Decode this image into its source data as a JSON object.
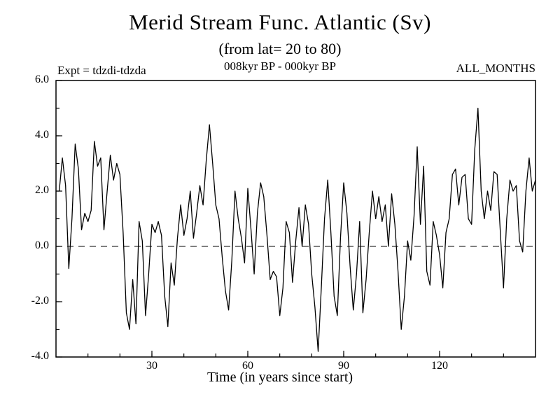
{
  "chart_data": {
    "type": "line",
    "title": "Merid Stream Func. Atlantic (Sv)",
    "subtitle": "(from lat= 20 to 80)",
    "annotations": {
      "expt": "Expt = tdzdi-tdzda",
      "period": "008kyr BP - 000kyr BP",
      "months": "ALL_MONTHS"
    },
    "xlabel": "Time (in years since start)",
    "ylabel": "",
    "xlim": [
      0,
      150
    ],
    "ylim": [
      -4.0,
      6.0
    ],
    "grid": false,
    "legend": "none",
    "zero_line_dashed": true,
    "line_color": "#000000",
    "background_color": "#ffffff",
    "yticks": [
      {
        "value": 6.0,
        "label": "6.0"
      },
      {
        "value": 4.0,
        "label": "4.0"
      },
      {
        "value": 2.0,
        "label": "2.0"
      },
      {
        "value": 0.0,
        "label": "0.0"
      },
      {
        "value": -2.0,
        "label": "-2.0"
      },
      {
        "value": -4.0,
        "label": "-4.0"
      }
    ],
    "xticks": [
      {
        "value": 30,
        "label": "30"
      },
      {
        "value": 60,
        "label": "60"
      },
      {
        "value": 90,
        "label": "90"
      },
      {
        "value": 120,
        "label": "120"
      }
    ],
    "x_start": 1,
    "x_step": 1,
    "values": [
      2.0,
      3.2,
      2.2,
      -0.8,
      1.0,
      3.7,
      2.8,
      0.6,
      1.2,
      0.9,
      1.3,
      3.8,
      2.9,
      3.2,
      0.6,
      2.0,
      3.3,
      2.4,
      3.0,
      2.6,
      0.5,
      -2.4,
      -3.0,
      -1.2,
      -2.8,
      0.9,
      0.2,
      -2.5,
      -1.0,
      0.8,
      0.5,
      0.9,
      0.4,
      -1.8,
      -2.9,
      -0.6,
      -1.4,
      0.3,
      1.5,
      0.4,
      1.0,
      2.0,
      0.3,
      1.2,
      2.2,
      1.5,
      3.1,
      4.4,
      3.0,
      1.5,
      1.0,
      -0.4,
      -1.6,
      -2.3,
      -0.5,
      2.0,
      1.0,
      0.3,
      -0.6,
      2.1,
      0.6,
      -1.0,
      1.2,
      2.3,
      1.8,
      0.4,
      -1.2,
      -0.9,
      -1.1,
      -2.5,
      -1.5,
      0.9,
      0.5,
      -1.3,
      0.2,
      1.4,
      0.0,
      1.5,
      0.8,
      -1.0,
      -2.2,
      -3.8,
      -1.5,
      1.0,
      2.4,
      0.5,
      -1.8,
      -2.5,
      0.3,
      2.3,
      1.2,
      -0.7,
      -2.3,
      -1.0,
      0.9,
      -2.4,
      -1.2,
      0.5,
      2.0,
      1.0,
      1.8,
      0.9,
      1.5,
      0.0,
      1.9,
      0.8,
      -0.9,
      -3.0,
      -1.8,
      0.2,
      -0.5,
      1.1,
      3.6,
      0.8,
      2.9,
      -0.9,
      -1.4,
      0.9,
      0.4,
      -0.3,
      -1.5,
      0.5,
      1.0,
      2.6,
      2.8,
      1.5,
      2.5,
      2.6,
      1.0,
      0.8,
      3.5,
      5.0,
      2.0,
      1.0,
      2.0,
      1.3,
      2.7,
      2.6,
      0.5,
      -1.5,
      1.0,
      2.4,
      2.0,
      2.2,
      0.2,
      -0.2,
      2.0,
      3.2,
      2.0,
      2.4
    ]
  }
}
